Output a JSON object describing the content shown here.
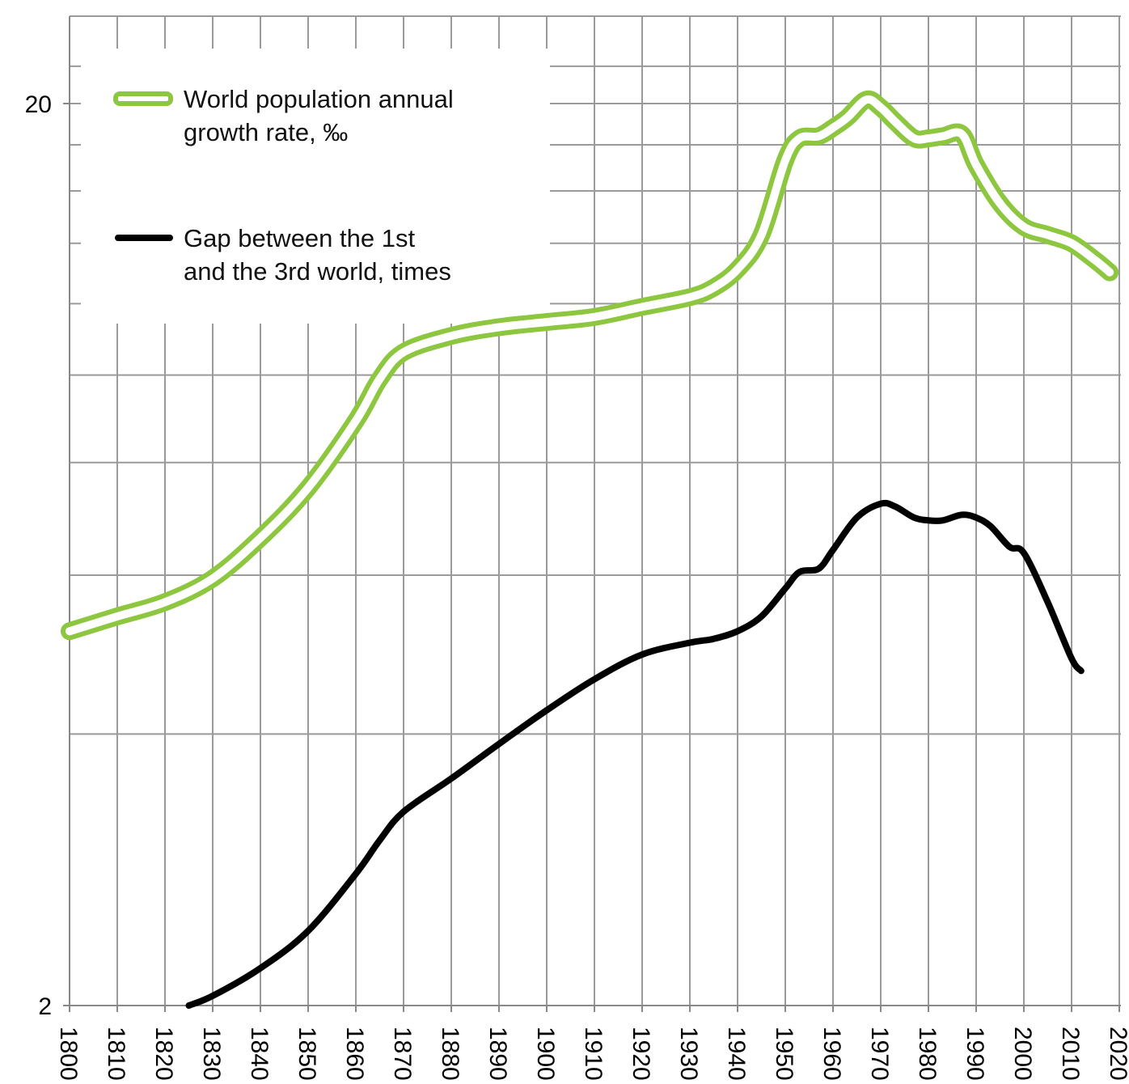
{
  "chart_data": {
    "type": "line",
    "title": "",
    "xlabel": "",
    "ylabel": "",
    "y_scale": "log",
    "ylim": [
      2,
      28
    ],
    "xlim": [
      1800,
      2020
    ],
    "x_ticks": [
      "1800",
      "1810",
      "1820",
      "1830",
      "1840",
      "1850",
      "1860",
      "1870",
      "1880",
      "1890",
      "1900",
      "1910",
      "1920",
      "1930",
      "1940",
      "1950",
      "1960",
      "1970",
      "1980",
      "1990",
      "2000",
      "2010",
      "2020"
    ],
    "y_ticks": [
      "2",
      "20"
    ],
    "grid": true,
    "legend_position": "top-left",
    "colors": {
      "green": "#8dc63f",
      "black": "#000000",
      "grid": "#9a9a9a"
    },
    "series": [
      {
        "name": "World population annual growth rate, ‰",
        "style": "double-green",
        "x": [
          1800,
          1810,
          1820,
          1830,
          1840,
          1850,
          1860,
          1865,
          1870,
          1880,
          1890,
          1900,
          1910,
          1920,
          1930,
          1935,
          1940,
          1945,
          1950,
          1953,
          1957,
          1960,
          1963,
          1967,
          1970,
          1973,
          1977,
          1980,
          1983,
          1987,
          1990,
          1995,
          2000,
          2005,
          2010,
          2015,
          2018
        ],
        "values": [
          5.2,
          5.4,
          5.6,
          5.95,
          6.6,
          7.5,
          8.9,
          9.9,
          10.6,
          11.05,
          11.3,
          11.45,
          11.6,
          11.9,
          12.2,
          12.5,
          13.1,
          14.3,
          17.3,
          18.3,
          18.4,
          18.8,
          19.3,
          20.2,
          19.8,
          19.1,
          18.3,
          18.3,
          18.4,
          18.5,
          17.1,
          15.5,
          14.6,
          14.3,
          14.0,
          13.4,
          13.0
        ]
      },
      {
        "name": "Gap between the 1st and the 3rd world, times",
        "style": "solid-black",
        "x": [
          1825,
          1830,
          1840,
          1850,
          1860,
          1865,
          1870,
          1880,
          1890,
          1900,
          1910,
          1920,
          1930,
          1935,
          1940,
          1945,
          1950,
          1953,
          1957,
          1960,
          1965,
          1970,
          1973,
          1977,
          1980,
          1983,
          1987,
          1990,
          1993,
          1997,
          2000,
          2005,
          2010,
          2012
        ],
        "values": [
          2.0,
          2.05,
          2.2,
          2.42,
          2.8,
          3.05,
          3.28,
          3.57,
          3.9,
          4.25,
          4.6,
          4.9,
          5.05,
          5.1,
          5.2,
          5.4,
          5.8,
          6.05,
          6.1,
          6.4,
          6.95,
          7.2,
          7.15,
          6.95,
          6.9,
          6.9,
          7.0,
          6.95,
          6.8,
          6.45,
          6.35,
          5.6,
          4.85,
          4.7
        ]
      }
    ]
  },
  "legend": {
    "item1_line1": "World population annual",
    "item1_line2": "growth rate, ‰",
    "item2_line1": "Gap between the 1st",
    "item2_line2": "and the 3rd world, times"
  }
}
